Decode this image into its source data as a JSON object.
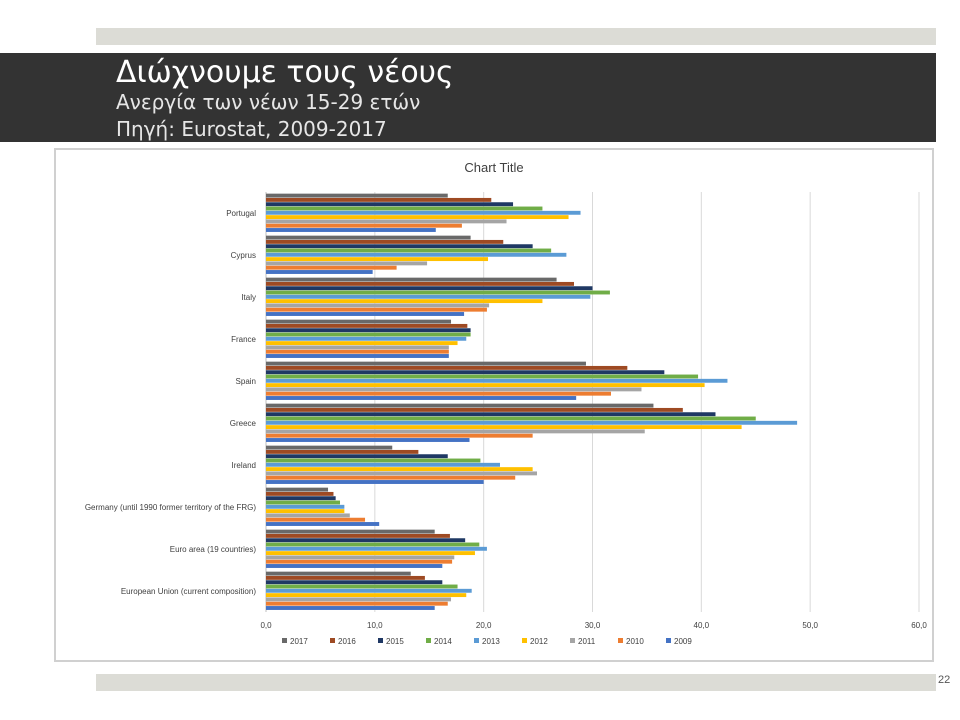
{
  "slide": {
    "title": "Διώχνουμε τους νέους",
    "subtitle_line1": "Ανεργία των νέων 15-29 ετών",
    "subtitle_line2": "Πηγή: Eurostat, 2009-2017",
    "page_number": "22"
  },
  "colors": {
    "title_bar": "#333333",
    "2017": "#696969",
    "2016": "#9e4a23",
    "2015": "#1f3864",
    "2014": "#70ad47",
    "2013": "#5b9bd5",
    "2012": "#ffc000",
    "2011": "#a5a5a5",
    "2010": "#ed7d31",
    "2009": "#4472c4"
  },
  "chart_data": {
    "type": "bar",
    "orientation": "horizontal",
    "title": "Chart Title",
    "categories": [
      "Portugal",
      "Cyprus",
      "Italy",
      "France",
      "Spain",
      "Greece",
      "Ireland",
      "Germany (until 1990 former territory of the FRG)",
      "Euro area (19 countries)",
      "European Union (current composition)"
    ],
    "series": [
      {
        "name": "2017",
        "color": "#696969",
        "values": [
          16.7,
          18.8,
          26.7,
          17.0,
          29.4,
          35.6,
          11.6,
          5.7,
          15.5,
          13.3
        ]
      },
      {
        "name": "2016",
        "color": "#9e4a23",
        "values": [
          20.7,
          21.8,
          28.3,
          18.5,
          33.2,
          38.3,
          14.0,
          6.2,
          16.9,
          14.6
        ]
      },
      {
        "name": "2015",
        "color": "#1f3864",
        "values": [
          22.7,
          24.5,
          30.0,
          18.8,
          36.6,
          41.3,
          16.7,
          6.4,
          18.3,
          16.2
        ]
      },
      {
        "name": "2014",
        "color": "#70ad47",
        "values": [
          25.4,
          26.2,
          31.6,
          18.8,
          39.7,
          45.0,
          19.7,
          6.8,
          19.6,
          17.6
        ]
      },
      {
        "name": "2013",
        "color": "#5b9bd5",
        "values": [
          28.9,
          27.6,
          29.8,
          18.4,
          42.4,
          48.8,
          21.5,
          7.2,
          20.3,
          18.9
        ]
      },
      {
        "name": "2012",
        "color": "#ffc000",
        "values": [
          27.8,
          20.4,
          25.4,
          17.6,
          40.3,
          43.7,
          24.5,
          7.2,
          19.2,
          18.4
        ]
      },
      {
        "name": "2011",
        "color": "#a5a5a5",
        "values": [
          22.1,
          14.8,
          20.5,
          16.8,
          34.5,
          34.8,
          24.9,
          7.7,
          17.3,
          17.0
        ]
      },
      {
        "name": "2010",
        "color": "#ed7d31",
        "values": [
          18.0,
          12.0,
          20.3,
          16.8,
          31.7,
          24.5,
          22.9,
          9.1,
          17.1,
          16.7
        ]
      },
      {
        "name": "2009",
        "color": "#4472c4",
        "values": [
          15.6,
          9.8,
          18.2,
          16.8,
          28.5,
          18.7,
          20.0,
          10.4,
          16.2,
          15.5
        ]
      }
    ],
    "xlim": [
      0,
      60
    ],
    "xticks": [
      "0,0",
      "10,0",
      "20,0",
      "30,0",
      "40,0",
      "50,0",
      "60,0"
    ],
    "xlabel": "",
    "ylabel": "",
    "grid": true,
    "legend_position": "bottom"
  }
}
